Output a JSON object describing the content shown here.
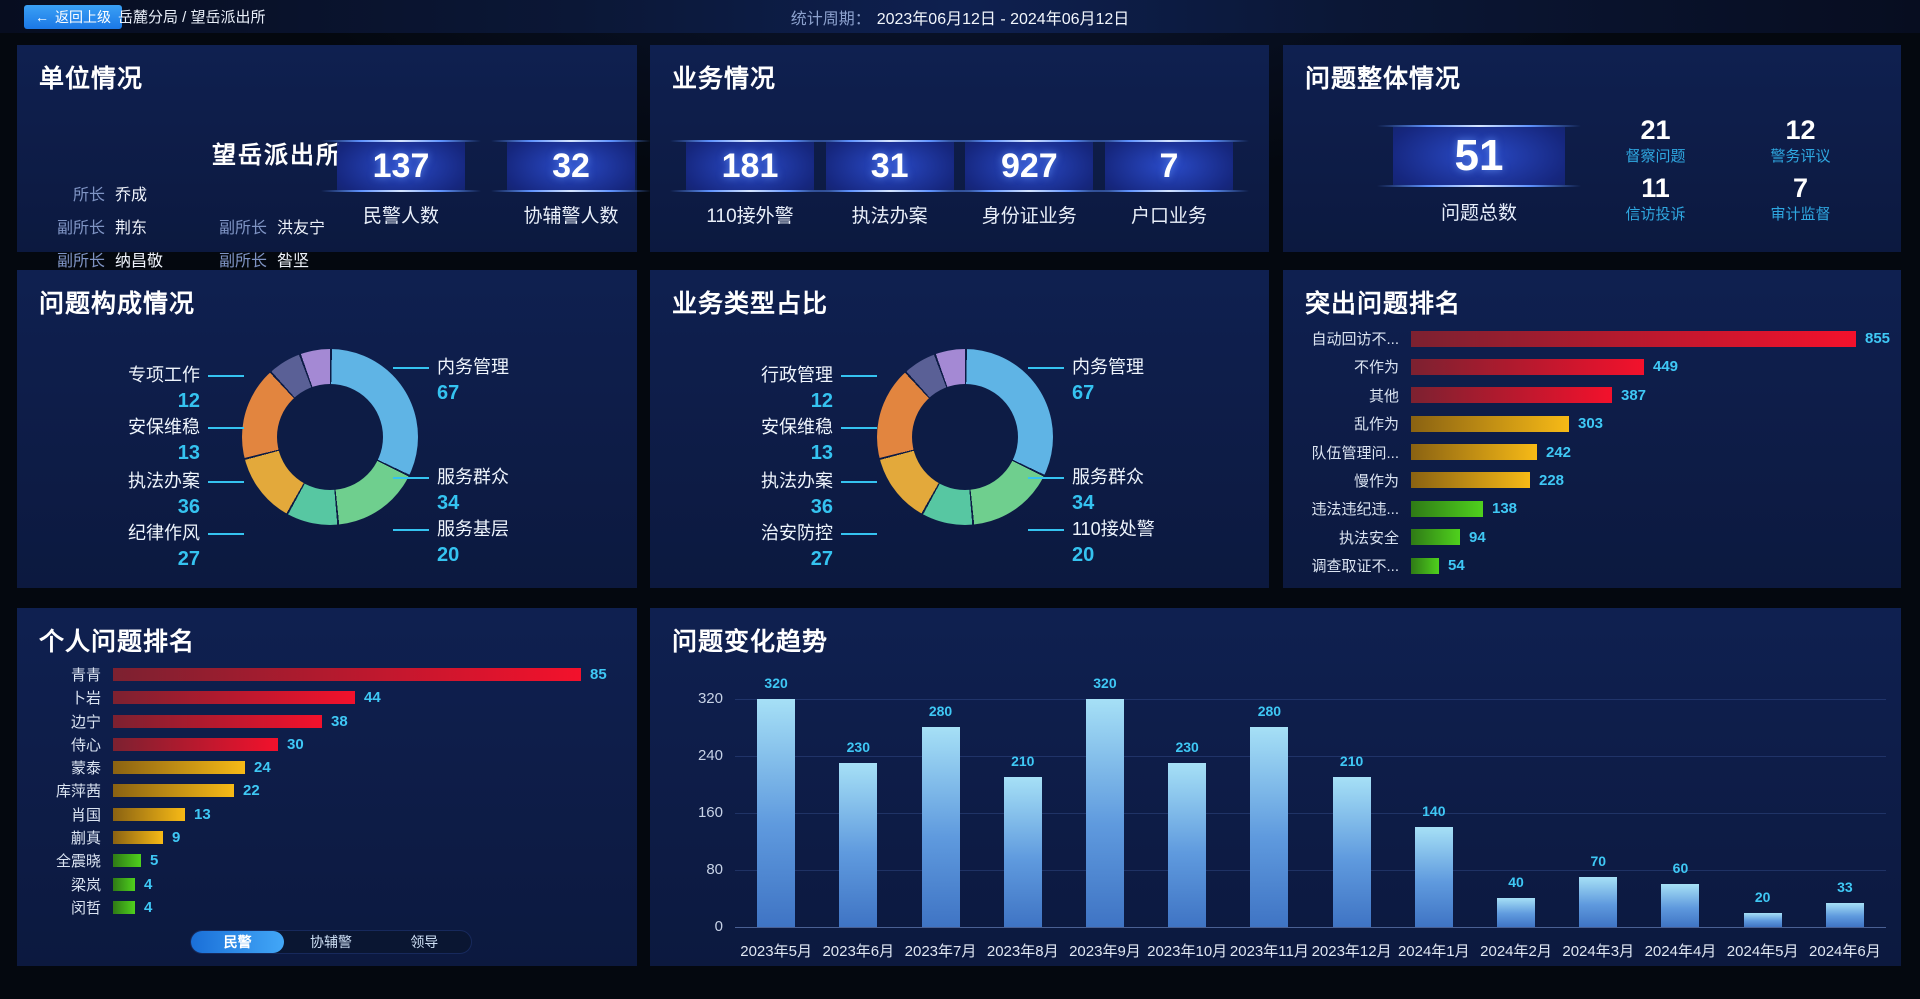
{
  "colors": {
    "accent_cyan": "#35c3f0",
    "value_cyan": "#3fc8f5",
    "stat_label_blue": "#2fa8e1",
    "back_button_blue": "#1b78e6",
    "panel_bg": "#0d1c45",
    "bar_palette": {
      "red": [
        "#7c2130",
        "#f3112c"
      ],
      "gold": [
        "#8a6212",
        "#f7ba16"
      ],
      "green": [
        "#2f7a16",
        "#4fd11d"
      ]
    },
    "trend_bar_gradient": [
      "#a6e0f6",
      "#3f74c4"
    ],
    "pie_palette": [
      "#5fb4e5",
      "#6fcf8e",
      "#57c7a2",
      "#e3a93b",
      "#e2853f",
      "#5a6096",
      "#a489d4"
    ]
  },
  "top_bar": {
    "back_button": "返回上级",
    "breadcrumb": "岳麓分局 / 望岳派出所",
    "period_label": "统计周期：",
    "period_value": "2023年06月12日 - 2024年06月12日"
  },
  "panels": {
    "unit": {
      "title": "单位情况",
      "station_name": "望岳派出所",
      "staff": [
        {
          "role": "所长",
          "name": "乔成"
        },
        {
          "role": "副所长",
          "name": "荆东"
        },
        {
          "role": "副所长",
          "name": "洪友宁"
        },
        {
          "role": "副所长",
          "name": "纳昌敬"
        },
        {
          "role": "副所长",
          "name": "昝坚"
        }
      ],
      "stats": [
        {
          "value": "137",
          "label": "民警人数"
        },
        {
          "value": "32",
          "label": "协辅警人数"
        }
      ]
    },
    "business": {
      "title": "业务情况",
      "stats": [
        {
          "value": "181",
          "label": "110接外警"
        },
        {
          "value": "31",
          "label": "执法办案"
        },
        {
          "value": "927",
          "label": "身份证业务"
        },
        {
          "value": "7",
          "label": "户口业务"
        }
      ]
    },
    "problem": {
      "title": "问题整体情况",
      "total": {
        "value": "51",
        "label": "问题总数"
      },
      "stats": [
        {
          "value": "21",
          "label": "督察问题"
        },
        {
          "value": "12",
          "label": "警务评议"
        },
        {
          "value": "11",
          "label": "信访投诉"
        },
        {
          "value": "7",
          "label": "审计监督"
        }
      ]
    }
  },
  "chart_data": [
    {
      "id": "problem_composition",
      "type": "pie",
      "title": "问题构成情况",
      "items": [
        {
          "label": "内务管理",
          "value": 67
        },
        {
          "label": "服务群众",
          "value": 34
        },
        {
          "label": "服务基层",
          "value": 20
        },
        {
          "label": "纪律作风",
          "value": 27
        },
        {
          "label": "执法办案",
          "value": 36
        },
        {
          "label": "安保维稳",
          "value": 13
        },
        {
          "label": "专项工作",
          "value": 12
        }
      ]
    },
    {
      "id": "business_type",
      "type": "pie",
      "title": "业务类型占比",
      "items": [
        {
          "label": "内务管理",
          "value": 67
        },
        {
          "label": "服务群众",
          "value": 34
        },
        {
          "label": "110接处警",
          "value": 20
        },
        {
          "label": "治安防控",
          "value": 27
        },
        {
          "label": "执法办案",
          "value": 36
        },
        {
          "label": "安保维稳",
          "value": 13
        },
        {
          "label": "行政管理",
          "value": 12
        }
      ]
    },
    {
      "id": "top_problems",
      "type": "bar-horizontal",
      "title": "突出问题排名",
      "items": [
        {
          "label": "自动回访不...",
          "value": 855,
          "color": "red"
        },
        {
          "label": "不作为",
          "value": 449,
          "color": "red"
        },
        {
          "label": "其他",
          "value": 387,
          "color": "red"
        },
        {
          "label": "乱作为",
          "value": 303,
          "color": "gold"
        },
        {
          "label": "队伍管理问...",
          "value": 242,
          "color": "gold"
        },
        {
          "label": "慢作为",
          "value": 228,
          "color": "gold"
        },
        {
          "label": "违法违纪违...",
          "value": 138,
          "color": "green"
        },
        {
          "label": "执法安全",
          "value": 94,
          "color": "green"
        },
        {
          "label": "调查取证不...",
          "value": 54,
          "color": "green"
        }
      ]
    },
    {
      "id": "personal_ranking",
      "type": "bar-horizontal",
      "title": "个人问题排名",
      "tabs": {
        "options": [
          "民警",
          "协辅警",
          "领导"
        ],
        "active": "民警"
      },
      "items": [
        {
          "label": "青青",
          "value": 85,
          "color": "red"
        },
        {
          "label": "卜岩",
          "value": 44,
          "color": "red"
        },
        {
          "label": "边宁",
          "value": 38,
          "color": "red"
        },
        {
          "label": "侍心",
          "value": 30,
          "color": "red"
        },
        {
          "label": "蒙泰",
          "value": 24,
          "color": "gold"
        },
        {
          "label": "库萍茜",
          "value": 22,
          "color": "gold"
        },
        {
          "label": "肖国",
          "value": 13,
          "color": "gold"
        },
        {
          "label": "蒯真",
          "value": 9,
          "color": "gold"
        },
        {
          "label": "全震晓",
          "value": 5,
          "color": "green"
        },
        {
          "label": "梁岚",
          "value": 4,
          "color": "green"
        },
        {
          "label": "闵哲",
          "value": 4,
          "color": "green"
        }
      ]
    },
    {
      "id": "trend",
      "type": "bar",
      "title": "问题变化趋势",
      "categories": [
        "2023年5月",
        "2023年6月",
        "2023年7月",
        "2023年8月",
        "2023年9月",
        "2023年10月",
        "2023年11月",
        "2023年12月",
        "2024年1月",
        "2024年2月",
        "2024年3月",
        "2024年4月",
        "2024年5月",
        "2024年6月"
      ],
      "values": [
        320,
        230,
        280,
        210,
        320,
        230,
        280,
        210,
        140,
        40,
        70,
        60,
        20,
        33
      ],
      "yticks": [
        0,
        80,
        160,
        240,
        320
      ],
      "ylim": [
        0,
        320
      ],
      "grid": true
    }
  ]
}
